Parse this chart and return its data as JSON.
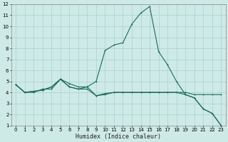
{
  "xlabel": "Humidex (Indice chaleur)",
  "bg_color": "#ceeae7",
  "grid_color": "#afd4d0",
  "line_color": "#1a6b5a",
  "xlim": [
    -0.5,
    23.5
  ],
  "ylim": [
    1,
    12
  ],
  "xticks": [
    0,
    1,
    2,
    3,
    4,
    5,
    6,
    7,
    8,
    9,
    10,
    11,
    12,
    13,
    14,
    15,
    16,
    17,
    18,
    19,
    20,
    21,
    22,
    23
  ],
  "yticks": [
    1,
    2,
    3,
    4,
    5,
    6,
    7,
    8,
    9,
    10,
    11,
    12
  ],
  "line1_x": [
    0,
    1,
    2,
    3,
    4,
    5,
    6,
    7,
    8,
    9,
    10,
    11,
    12,
    13,
    14,
    15,
    16,
    17,
    18,
    19,
    20,
    21,
    22,
    23
  ],
  "line1_y": [
    4.7,
    4.0,
    4.0,
    4.3,
    4.3,
    5.2,
    4.5,
    4.3,
    4.3,
    3.7,
    3.8,
    4.0,
    4.0,
    4.0,
    4.0,
    4.0,
    4.0,
    4.0,
    4.0,
    4.0,
    3.8,
    3.8,
    3.8,
    3.8
  ],
  "line2_x": [
    0,
    1,
    2,
    3,
    4,
    5,
    6,
    7,
    8,
    9,
    10,
    11,
    12,
    13,
    14,
    15,
    16,
    17,
    18,
    19,
    20,
    21,
    22,
    23
  ],
  "line2_y": [
    4.7,
    4.0,
    4.1,
    4.2,
    4.5,
    5.2,
    4.8,
    4.5,
    4.5,
    5.0,
    7.8,
    8.3,
    8.5,
    10.2,
    11.2,
    11.8,
    7.7,
    6.5,
    5.0,
    3.8,
    3.5,
    2.5,
    2.1,
    1.0
  ],
  "line3_x": [
    0,
    1,
    2,
    3,
    4,
    5,
    6,
    7,
    8,
    9,
    10,
    11,
    12,
    13,
    14,
    15,
    16,
    17,
    18,
    19,
    20,
    21,
    22,
    23
  ],
  "line3_y": [
    4.7,
    4.0,
    4.1,
    4.2,
    4.5,
    5.2,
    4.5,
    4.3,
    4.5,
    3.7,
    3.9,
    4.0,
    4.0,
    4.0,
    4.0,
    4.0,
    4.0,
    4.0,
    4.0,
    3.8,
    3.5,
    2.5,
    2.1,
    1.0
  ],
  "tick_labelsize": 5,
  "xlabel_fontsize": 6,
  "lw": 0.8,
  "ms": 2.0
}
